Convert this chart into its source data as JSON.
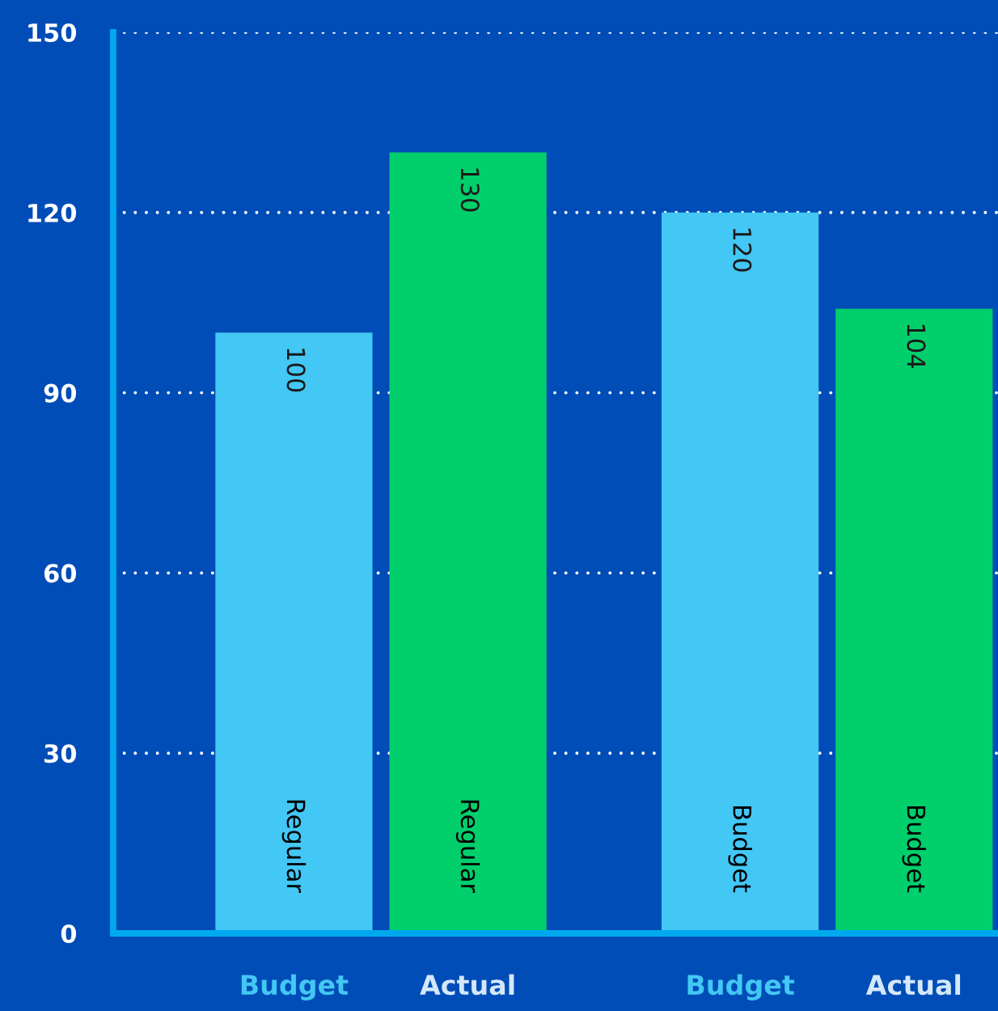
{
  "chart_data": {
    "type": "bar",
    "categories": [
      "Regular",
      "Budget"
    ],
    "series": [
      {
        "name": "Budget",
        "color": "#43c7f4",
        "values": [
          100,
          120
        ]
      },
      {
        "name": "Actual",
        "color": "#00cf6c",
        "values": [
          130,
          104
        ]
      }
    ],
    "ylim": [
      0,
      150
    ],
    "yticks": [
      0,
      30,
      60,
      90,
      120,
      150
    ],
    "grid": "y",
    "data_labels": true
  }
}
